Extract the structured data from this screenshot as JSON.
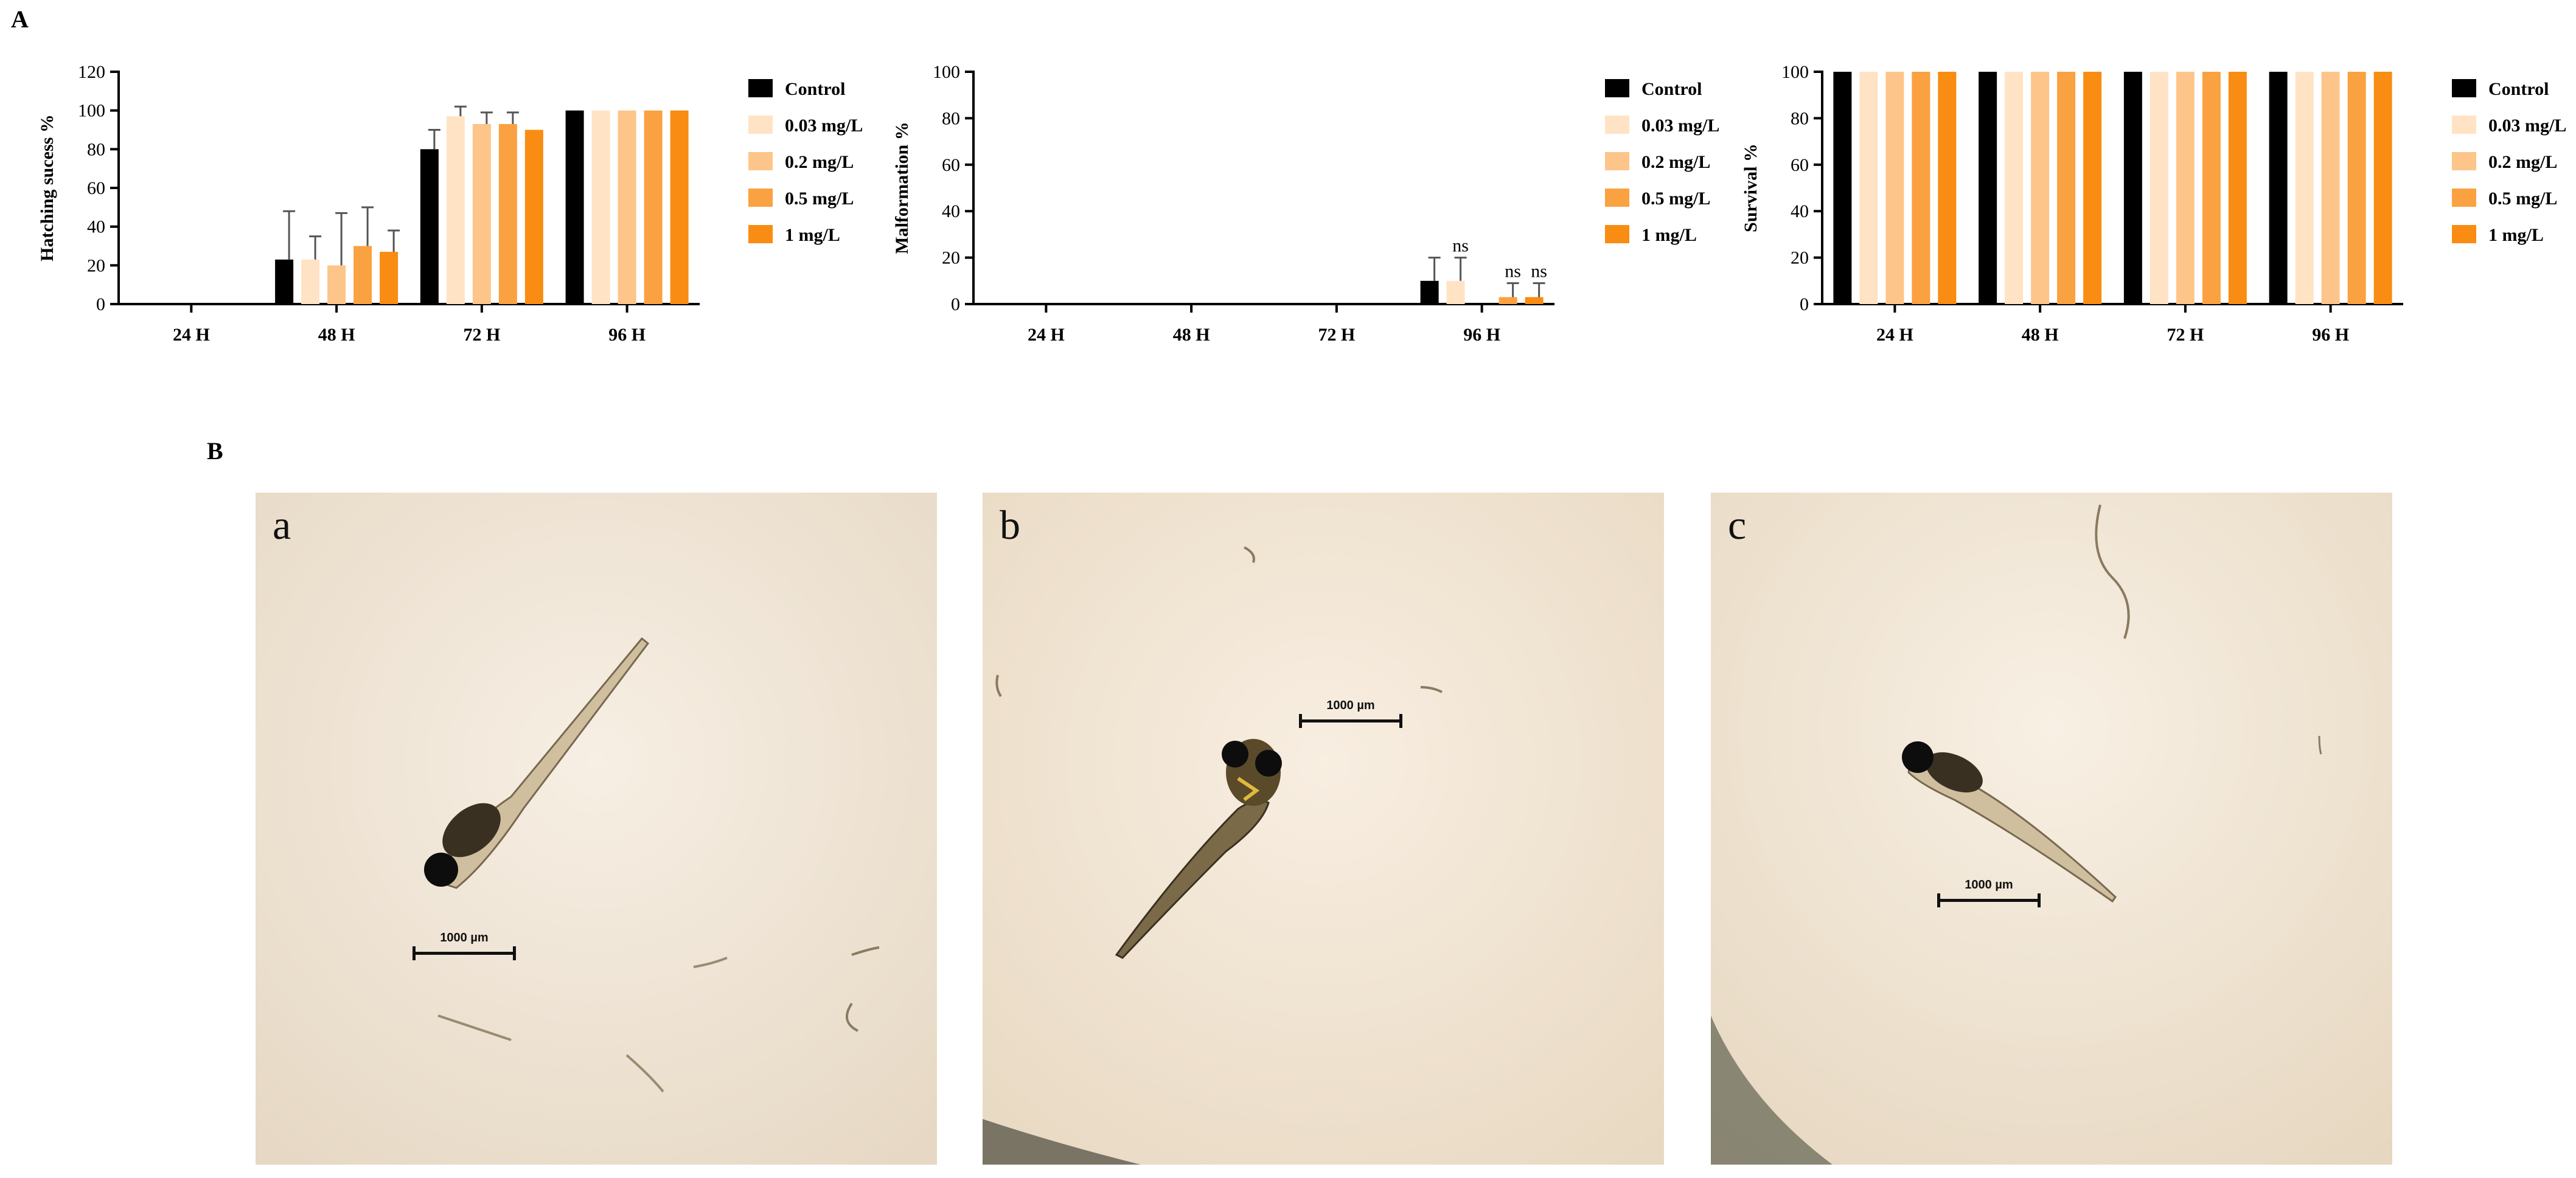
{
  "panel_a_label": "A",
  "panel_b_label": "B",
  "colors": {
    "Control": "#000000",
    "0.03 mg/L": "#FFE3C4",
    "0.2 mg/L": "#FDC58A",
    "0.5 mg/L": "#FAA142",
    "1 mg/L": "#F98C12"
  },
  "chart_data": [
    {
      "type": "bar",
      "ylabel": "Hatching sucess %",
      "ylim": [
        0,
        120
      ],
      "yticks": [
        0,
        20,
        40,
        60,
        80,
        100,
        120
      ],
      "categories": [
        "24 H",
        "48 H",
        "72 H",
        "96 H"
      ],
      "legend": "right",
      "series": [
        {
          "name": "Control",
          "values": [
            0,
            23,
            80,
            100
          ],
          "errors": [
            0,
            25,
            10,
            0
          ]
        },
        {
          "name": "0.03 mg/L",
          "values": [
            0,
            23,
            97,
            100
          ],
          "errors": [
            0,
            12,
            5,
            0
          ]
        },
        {
          "name": "0.2 mg/L",
          "values": [
            0,
            20,
            93,
            100
          ],
          "errors": [
            0,
            27,
            6,
            0
          ]
        },
        {
          "name": "0.5 mg/L",
          "values": [
            0,
            30,
            93,
            100
          ],
          "errors": [
            0,
            20,
            6,
            0
          ]
        },
        {
          "name": "1 mg/L",
          "values": [
            0,
            27,
            90,
            100
          ],
          "errors": [
            0,
            11,
            0,
            0
          ]
        }
      ],
      "annotations": []
    },
    {
      "type": "bar",
      "ylabel": "Malformation %",
      "ylim": [
        0,
        100
      ],
      "yticks": [
        0,
        20,
        40,
        60,
        80,
        100
      ],
      "categories": [
        "24 H",
        "48 H",
        "72 H",
        "96 H"
      ],
      "legend": "right",
      "series": [
        {
          "name": "Control",
          "values": [
            0,
            0,
            0,
            10
          ],
          "errors": [
            0,
            0,
            0,
            10
          ]
        },
        {
          "name": "0.03 mg/L",
          "values": [
            0,
            0,
            0,
            10
          ],
          "errors": [
            0,
            0,
            0,
            10
          ]
        },
        {
          "name": "0.2 mg/L",
          "values": [
            0,
            0,
            0,
            0
          ],
          "errors": [
            0,
            0,
            0,
            0
          ]
        },
        {
          "name": "0.5 mg/L",
          "values": [
            0,
            0,
            0,
            3
          ],
          "errors": [
            0,
            0,
            0,
            6
          ]
        },
        {
          "name": "1 mg/L",
          "values": [
            0,
            0,
            0,
            3
          ],
          "errors": [
            0,
            0,
            0,
            6
          ]
        }
      ],
      "annotations": [
        {
          "category": "96 H",
          "series": "0.03 mg/L",
          "text": "ns"
        },
        {
          "category": "96 H",
          "series": "0.5 mg/L",
          "text": "ns"
        },
        {
          "category": "96 H",
          "series": "1 mg/L",
          "text": "ns"
        }
      ]
    },
    {
      "type": "bar",
      "ylabel": "Survival %",
      "ylim": [
        0,
        100
      ],
      "yticks": [
        0,
        20,
        40,
        60,
        80,
        100
      ],
      "categories": [
        "24 H",
        "48 H",
        "72 H",
        "96 H"
      ],
      "legend": "right",
      "series": [
        {
          "name": "Control",
          "values": [
            100,
            100,
            100,
            100
          ],
          "errors": [
            0,
            0,
            0,
            0
          ]
        },
        {
          "name": "0.03 mg/L",
          "values": [
            100,
            100,
            100,
            100
          ],
          "errors": [
            0,
            0,
            0,
            0
          ]
        },
        {
          "name": "0.2 mg/L",
          "values": [
            100,
            100,
            100,
            100
          ],
          "errors": [
            0,
            0,
            0,
            0
          ]
        },
        {
          "name": "0.5 mg/L",
          "values": [
            100,
            100,
            100,
            100
          ],
          "errors": [
            0,
            0,
            0,
            0
          ]
        },
        {
          "name": "1 mg/L",
          "values": [
            100,
            100,
            100,
            100
          ],
          "errors": [
            0,
            0,
            0,
            0
          ]
        }
      ],
      "annotations": []
    }
  ],
  "photos": [
    {
      "letter": "a",
      "scale_label": "1000 µm"
    },
    {
      "letter": "b",
      "scale_label": "1000 µm"
    },
    {
      "letter": "c",
      "scale_label": "1000 µm"
    }
  ]
}
